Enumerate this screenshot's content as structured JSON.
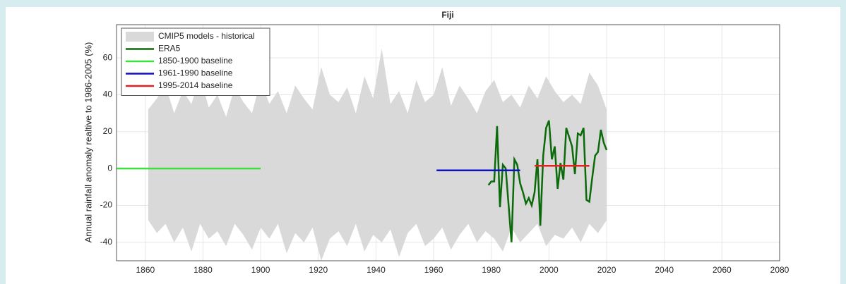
{
  "chart_data": {
    "type": "line",
    "title": "Fiji",
    "y_label": "Annual rainfall anomaly realtive to 1986-2005 (%)",
    "xlim": [
      1850,
      2080
    ],
    "xticks": [
      1860,
      1880,
      1900,
      1920,
      1940,
      1960,
      1980,
      2000,
      2020,
      2040,
      2060,
      2080
    ],
    "ylim": [
      -50,
      78
    ],
    "yticks": [
      -40,
      -20,
      0,
      20,
      40,
      60
    ],
    "grid": true,
    "legend": "northwest",
    "series": [
      {
        "name": "CMIP5 models - historical",
        "color": "#d9d9d9",
        "x": [
          1861,
          1864,
          1867,
          1870,
          1873,
          1876,
          1879,
          1882,
          1885,
          1888,
          1891,
          1894,
          1897,
          1900,
          1903,
          1906,
          1909,
          1912,
          1915,
          1918,
          1921,
          1924,
          1927,
          1930,
          1933,
          1936,
          1939,
          1942,
          1945,
          1948,
          1951,
          1954,
          1957,
          1960,
          1963,
          1966,
          1969,
          1972,
          1975,
          1978,
          1981,
          1984,
          1987,
          1990,
          1993,
          1996,
          1999,
          2002,
          2005,
          2008,
          2011,
          2014,
          2017,
          2020
        ],
        "upper": [
          32,
          38,
          45,
          30,
          42,
          35,
          50,
          33,
          40,
          28,
          44,
          36,
          30,
          48,
          35,
          42,
          30,
          45,
          38,
          32,
          55,
          40,
          36,
          44,
          30,
          50,
          38,
          65,
          35,
          42,
          30,
          48,
          36,
          40,
          55,
          34,
          45,
          38,
          30,
          42,
          48,
          36,
          40,
          33,
          45,
          38,
          50,
          42,
          36,
          40,
          35,
          52,
          45,
          32
        ],
        "lower": [
          -28,
          -35,
          -30,
          -40,
          -32,
          -45,
          -30,
          -38,
          -34,
          -42,
          -30,
          -36,
          -44,
          -32,
          -38,
          -30,
          -46,
          -35,
          -40,
          -32,
          -50,
          -38,
          -34,
          -42,
          -30,
          -45,
          -36,
          -40,
          -33,
          -48,
          -35,
          -30,
          -42,
          -38,
          -32,
          -44,
          -36,
          -30,
          -40,
          -34,
          -38,
          -45,
          -32,
          -40,
          -35,
          -30,
          -42,
          -36,
          -38,
          -32,
          -40,
          -30,
          -35,
          -28
        ]
      },
      {
        "name": "ERA5",
        "color": "#0b6b0b",
        "x": [
          1979,
          1980,
          1981,
          1982,
          1983,
          1984,
          1985,
          1986,
          1987,
          1988,
          1989,
          1990,
          1991,
          1992,
          1993,
          1994,
          1995,
          1996,
          1997,
          1998,
          1999,
          2000,
          2001,
          2002,
          2003,
          2004,
          2005,
          2006,
          2007,
          2008,
          2009,
          2010,
          2011,
          2012,
          2013,
          2014,
          2015,
          2016,
          2017,
          2018,
          2019,
          2020
        ],
        "values": [
          -9,
          -7,
          -7,
          23,
          -21,
          2,
          0,
          -20,
          -40,
          5,
          2,
          -8,
          -13,
          -19,
          -16,
          -20,
          -13,
          5,
          -31,
          7,
          22,
          26,
          5,
          12,
          -11,
          3,
          -6,
          22,
          17,
          12,
          -3,
          19,
          18,
          22,
          -17,
          -18,
          -5,
          7,
          9,
          21,
          14,
          10
        ]
      },
      {
        "name": "1850-1900 baseline",
        "color": "#3ee03e",
        "x": [
          1850,
          1900
        ],
        "values": [
          0,
          0
        ]
      },
      {
        "name": "1961-1990 baseline",
        "color": "#1010c0",
        "x": [
          1961,
          1990
        ],
        "values": [
          -1,
          -1
        ]
      },
      {
        "name": "1995-2014 baseline",
        "color": "#e82020",
        "x": [
          1995,
          2014
        ],
        "values": [
          1.5,
          1.5
        ]
      }
    ]
  }
}
